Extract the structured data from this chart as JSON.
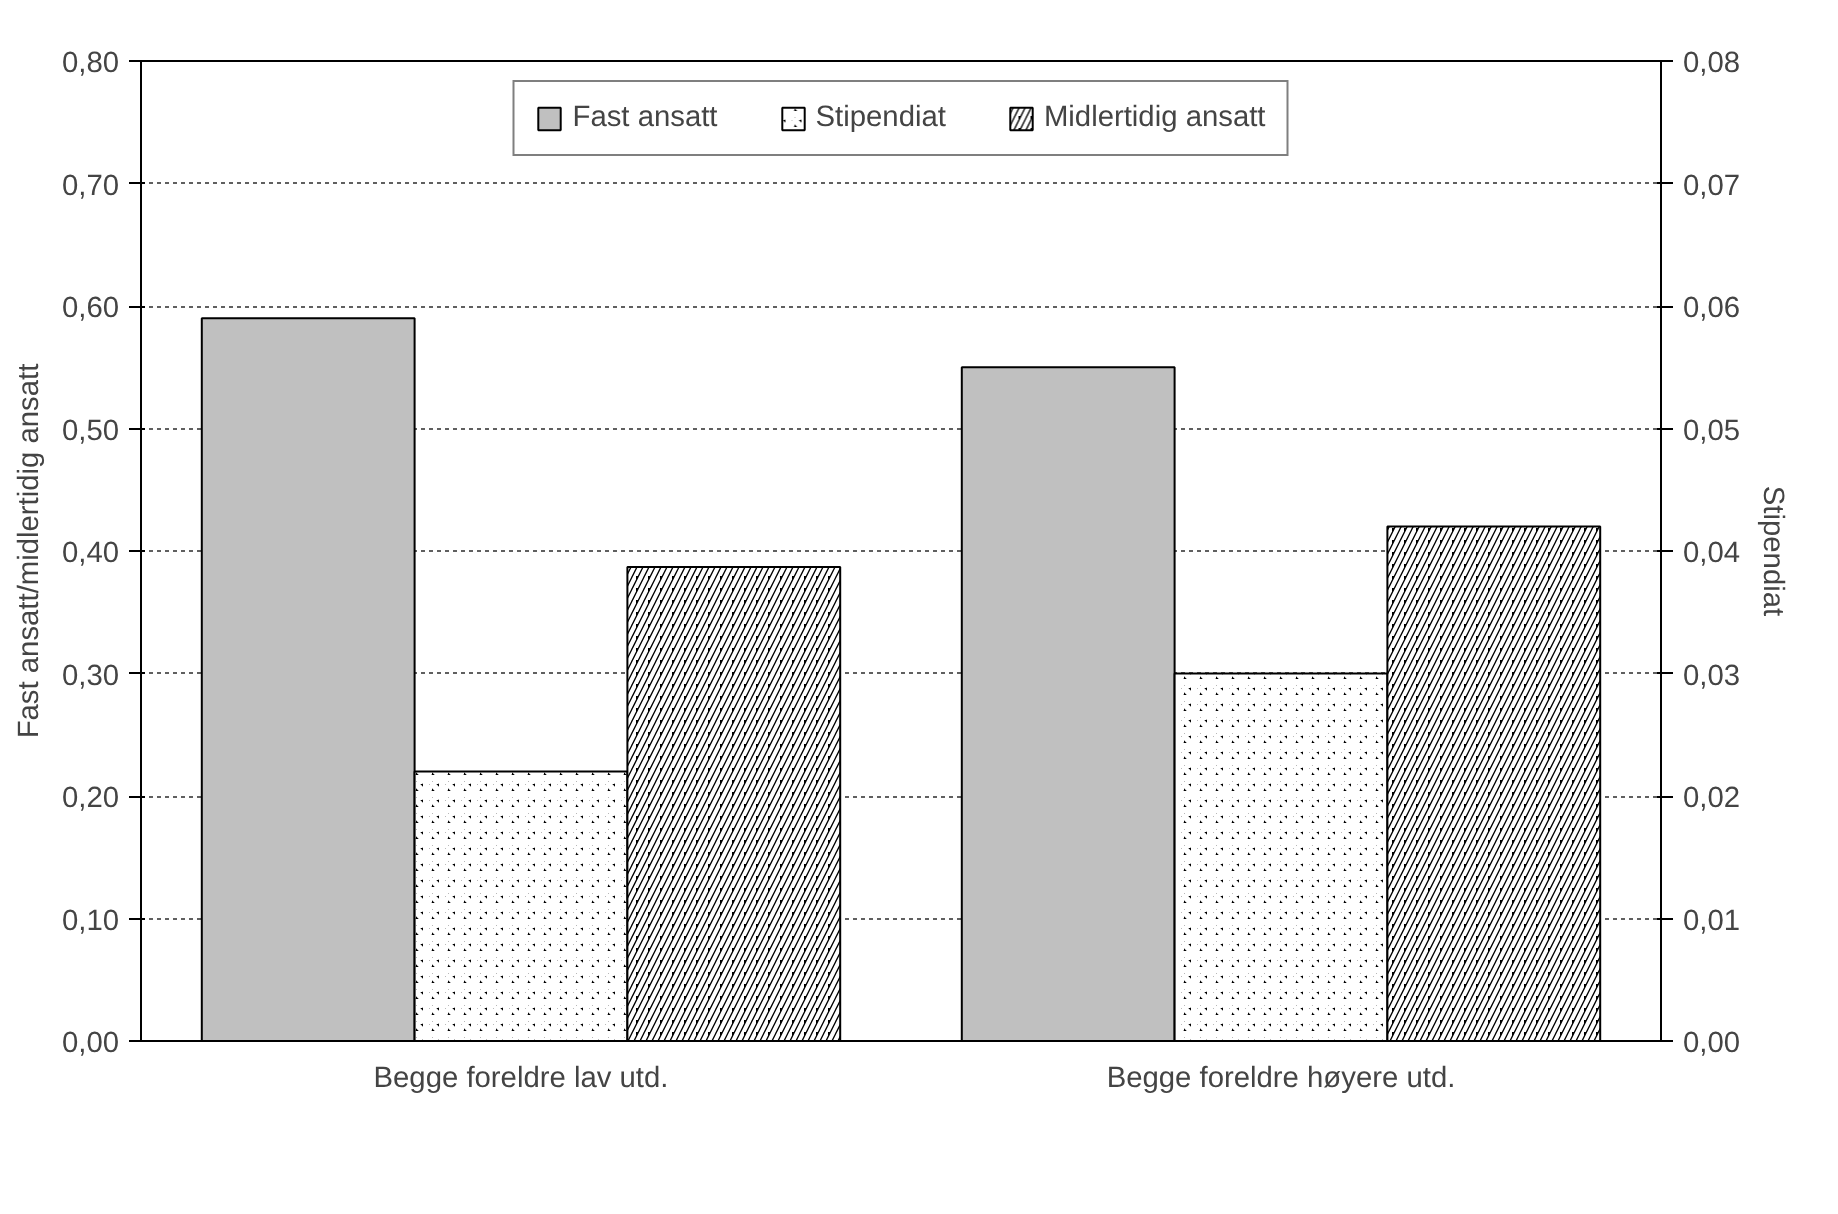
{
  "chart_data": {
    "type": "bar",
    "ylabel": "Fast ansatt/midlertidig ansatt",
    "y2label": "Stipendiat",
    "categories": [
      "Begge foreldre lav utd.",
      "Begge foreldre høyere utd."
    ],
    "series": [
      {
        "name": "Fast ansatt",
        "color": "#c0c0c0",
        "values": [
          0.59,
          0.55
        ]
      },
      {
        "name": "Stipendiat",
        "color": "#000000",
        "values": [
          0.022,
          0.03
        ],
        "axis": "y2"
      },
      {
        "name": "Midlertidig ansatt",
        "color": "#000000",
        "values": [
          0.387,
          0.42
        ]
      }
    ],
    "ylim": [
      0,
      0.8
    ],
    "yticks": [
      {
        "value": 0,
        "label": "0,00"
      },
      {
        "value": 0.1,
        "label": "0,10"
      },
      {
        "value": 0.2,
        "label": "0,20"
      },
      {
        "value": 0.3,
        "label": "0,30"
      },
      {
        "value": 0.4,
        "label": "0,40"
      },
      {
        "value": 0.5,
        "label": "0,50"
      },
      {
        "value": 0.6,
        "label": "0,60"
      },
      {
        "value": 0.7,
        "label": "0,70"
      },
      {
        "value": 0.8,
        "label": "0,80"
      }
    ],
    "y2lim": [
      0,
      0.08
    ],
    "y2ticks": [
      {
        "value": 0,
        "label": "0,00"
      },
      {
        "value": 0.01,
        "label": "0,01"
      },
      {
        "value": 0.02,
        "label": "0,02"
      },
      {
        "value": 0.03,
        "label": "0,03"
      },
      {
        "value": 0.04,
        "label": "0,04"
      },
      {
        "value": 0.05,
        "label": "0,05"
      },
      {
        "value": 0.06,
        "label": "0,06"
      },
      {
        "value": 0.07,
        "label": "0,07"
      },
      {
        "value": 0.08,
        "label": "0,08"
      }
    ],
    "grid": "y",
    "legend": "top"
  }
}
